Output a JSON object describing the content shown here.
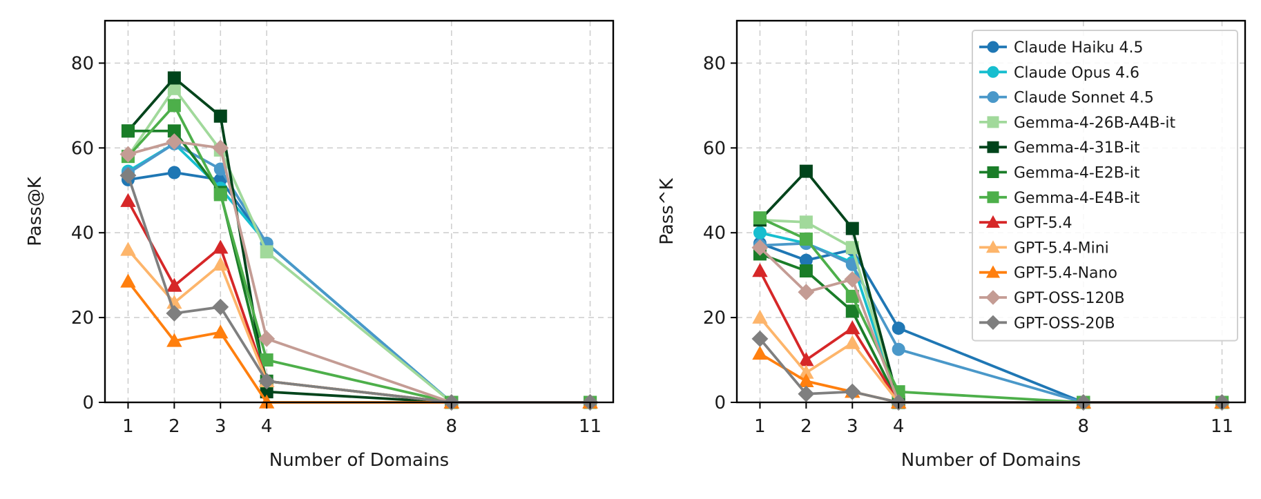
{
  "chart_data": [
    {
      "type": "line",
      "title": "",
      "xlabel": "Number of Domains",
      "ylabel": "Pass@K",
      "x": [
        1,
        2,
        3,
        4,
        8,
        11
      ],
      "xticks": [
        "1",
        "2",
        "3",
        "4",
        "8",
        "11"
      ],
      "yticks": [
        "0",
        "20",
        "40",
        "60",
        "80"
      ],
      "xlim": [
        0.5,
        11.5
      ],
      "ylim": [
        0,
        90
      ],
      "grid": true,
      "legend": false,
      "series": [
        {
          "name": "Claude Haiku 4.5",
          "color": "#1f77b4",
          "marker": "circle",
          "values": [
            52.5,
            54.2,
            52.5,
            37.5,
            0,
            0
          ]
        },
        {
          "name": "Claude Opus 4.6",
          "color": "#17becf",
          "marker": "circle",
          "values": [
            54.5,
            61.0,
            50.5,
            37.5,
            0,
            0
          ]
        },
        {
          "name": "Claude Sonnet 4.5",
          "color": "#4a98c9",
          "marker": "circle",
          "values": [
            54.0,
            61.0,
            55.0,
            37.5,
            0,
            0
          ]
        },
        {
          "name": "Gemma-4-26B-A4B-it",
          "color": "#a1d99b",
          "marker": "square",
          "values": [
            58.0,
            74.0,
            59.5,
            35.5,
            0,
            0
          ]
        },
        {
          "name": "Gemma-4-31B-it",
          "color": "#00441b",
          "marker": "square",
          "values": [
            64.0,
            76.5,
            67.5,
            2.5,
            0,
            0
          ]
        },
        {
          "name": "Gemma-4-E2B-it",
          "color": "#1a7d28",
          "marker": "square",
          "values": [
            64.0,
            64.0,
            49.5,
            5.0,
            0,
            0
          ]
        },
        {
          "name": "Gemma-4-E4B-it",
          "color": "#4daf4a",
          "marker": "square",
          "values": [
            58.0,
            70.0,
            49.0,
            10.0,
            0,
            0
          ]
        },
        {
          "name": "GPT-5.4",
          "color": "#d62728",
          "marker": "triangle",
          "values": [
            47.5,
            27.5,
            36.5,
            5.0,
            0,
            0
          ]
        },
        {
          "name": "GPT-5.4-Mini",
          "color": "#fdb56b",
          "marker": "triangle",
          "values": [
            36.0,
            23.5,
            32.5,
            5.0,
            0,
            0
          ]
        },
        {
          "name": "GPT-5.4-Nano",
          "color": "#ff7f0e",
          "marker": "triangle",
          "values": [
            28.5,
            14.5,
            16.5,
            0,
            0,
            0
          ]
        },
        {
          "name": "GPT-OSS-120B",
          "color": "#c49c94",
          "marker": "diamond",
          "values": [
            58.5,
            61.5,
            60.0,
            15.0,
            0,
            0
          ]
        },
        {
          "name": "GPT-OSS-20B",
          "color": "#7f7f7f",
          "marker": "diamond",
          "values": [
            53.5,
            21.0,
            22.5,
            5.0,
            0,
            0
          ]
        }
      ]
    },
    {
      "type": "line",
      "title": "",
      "xlabel": "Number of Domains",
      "ylabel": "Pass^K",
      "x": [
        1,
        2,
        3,
        4,
        8,
        11
      ],
      "xticks": [
        "1",
        "2",
        "3",
        "4",
        "8",
        "11"
      ],
      "yticks": [
        "0",
        "20",
        "40",
        "60",
        "80"
      ],
      "xlim": [
        0.5,
        11.5
      ],
      "ylim": [
        0,
        90
      ],
      "grid": true,
      "legend": "upper right",
      "series": [
        {
          "name": "Claude Haiku 4.5",
          "color": "#1f77b4",
          "marker": "circle",
          "values": [
            37.5,
            33.5,
            36.0,
            17.5,
            0,
            0
          ]
        },
        {
          "name": "Claude Opus 4.6",
          "color": "#17becf",
          "marker": "circle",
          "values": [
            40.0,
            37.5,
            33.0,
            0,
            0,
            0
          ]
        },
        {
          "name": "Claude Sonnet 4.5",
          "color": "#4a98c9",
          "marker": "circle",
          "values": [
            37.0,
            37.5,
            32.5,
            12.5,
            0,
            0
          ]
        },
        {
          "name": "Gemma-4-26B-A4B-it",
          "color": "#a1d99b",
          "marker": "square",
          "values": [
            43.0,
            42.5,
            36.5,
            0,
            0,
            0
          ]
        },
        {
          "name": "Gemma-4-31B-it",
          "color": "#00441b",
          "marker": "square",
          "values": [
            43.0,
            54.5,
            41.0,
            0,
            0,
            0
          ]
        },
        {
          "name": "Gemma-4-E2B-it",
          "color": "#1a7d28",
          "marker": "square",
          "values": [
            35.0,
            31.0,
            21.5,
            0,
            0,
            0
          ]
        },
        {
          "name": "Gemma-4-E4B-it",
          "color": "#4daf4a",
          "marker": "square",
          "values": [
            43.5,
            38.5,
            25.0,
            2.5,
            0,
            0
          ]
        },
        {
          "name": "GPT-5.4",
          "color": "#d62728",
          "marker": "triangle",
          "values": [
            31.0,
            10.0,
            17.5,
            0,
            0,
            0
          ]
        },
        {
          "name": "GPT-5.4-Mini",
          "color": "#fdb56b",
          "marker": "triangle",
          "values": [
            20.0,
            7.0,
            14.0,
            0,
            0,
            0
          ]
        },
        {
          "name": "GPT-5.4-Nano",
          "color": "#ff7f0e",
          "marker": "triangle",
          "values": [
            11.5,
            5.0,
            2.5,
            0,
            0,
            0
          ]
        },
        {
          "name": "GPT-OSS-120B",
          "color": "#c49c94",
          "marker": "diamond",
          "values": [
            36.5,
            26.0,
            29.0,
            0,
            0,
            0
          ]
        },
        {
          "name": "GPT-OSS-20B",
          "color": "#7f7f7f",
          "marker": "diamond",
          "values": [
            15.0,
            2.0,
            2.5,
            0,
            0,
            0
          ]
        }
      ]
    }
  ]
}
